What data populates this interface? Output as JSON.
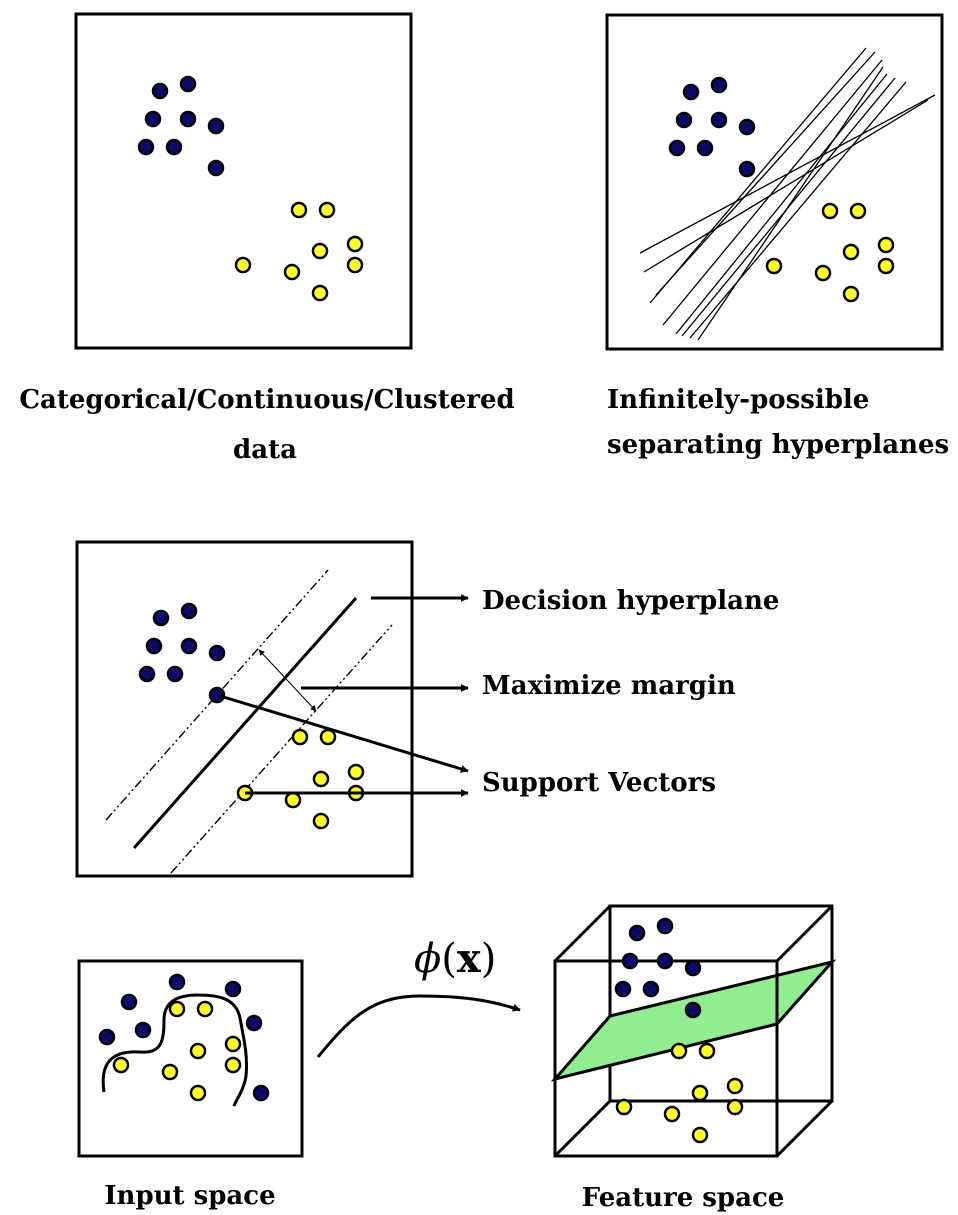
{
  "colors": {
    "class_a": "#0a0a6e",
    "class_b": "#ffff1e",
    "hyperplane_fill": "#90ee90",
    "stroke": "#000000"
  },
  "panels": {
    "clustered": {
      "caption_line1": "Categorical/Continuous/Clustered",
      "caption_line2": "data"
    },
    "hyperplanes": {
      "caption_line1": "Infinitely-possible",
      "caption_line2": "separating  hyperplanes"
    },
    "svm": {
      "label_decision": "Decision hyperplane",
      "label_margin": "Maximize margin",
      "label_support": "Support Vectors"
    },
    "kernel": {
      "mapping_symbol": "ϕ",
      "mapping_open": "(",
      "mapping_arg": "x",
      "mapping_close": ")",
      "caption_input": "Input space",
      "caption_feature": "Feature space"
    }
  }
}
